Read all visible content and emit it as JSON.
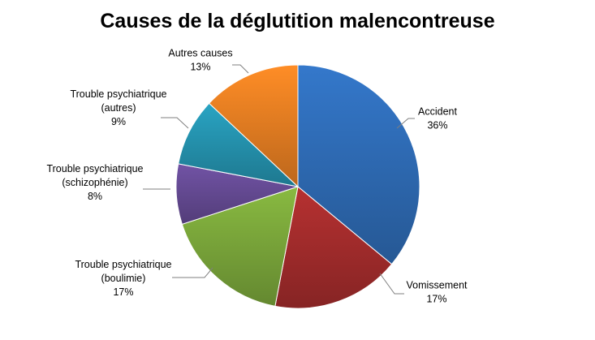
{
  "chart_data": {
    "type": "pie",
    "title": "Causes de la déglutition malencontreuse",
    "start_angle_deg": 0,
    "direction": "clockwise",
    "legend": "none",
    "slices": [
      {
        "name": "Accident",
        "label_lines": [
          "Accident"
        ],
        "value": 36,
        "value_label": "36%",
        "color": "#2E6BB5"
      },
      {
        "name": "Vomissement",
        "label_lines": [
          "Vomissement"
        ],
        "value": 17,
        "value_label": "17%",
        "color": "#A32C2C"
      },
      {
        "name": "Trouble psychiatrique (boulimie)",
        "label_lines": [
          "Trouble psychiatrique",
          "(boulimie)"
        ],
        "value": 17,
        "value_label": "17%",
        "color": "#7AA63A"
      },
      {
        "name": "Trouble psychiatrique (schizophénie)",
        "label_lines": [
          "Trouble psychiatrique",
          "(schizophénie)"
        ],
        "value": 8,
        "value_label": "8%",
        "color": "#654A93"
      },
      {
        "name": "Trouble psychiatrique (autres)",
        "label_lines": [
          "Trouble psychiatrique",
          "(autres)"
        ],
        "value": 9,
        "value_label": "9%",
        "color": "#2592AE"
      },
      {
        "name": "Autres causes",
        "label_lines": [
          "Autres causes"
        ],
        "value": 13,
        "value_label": "13%",
        "color": "#E57E22"
      }
    ]
  }
}
